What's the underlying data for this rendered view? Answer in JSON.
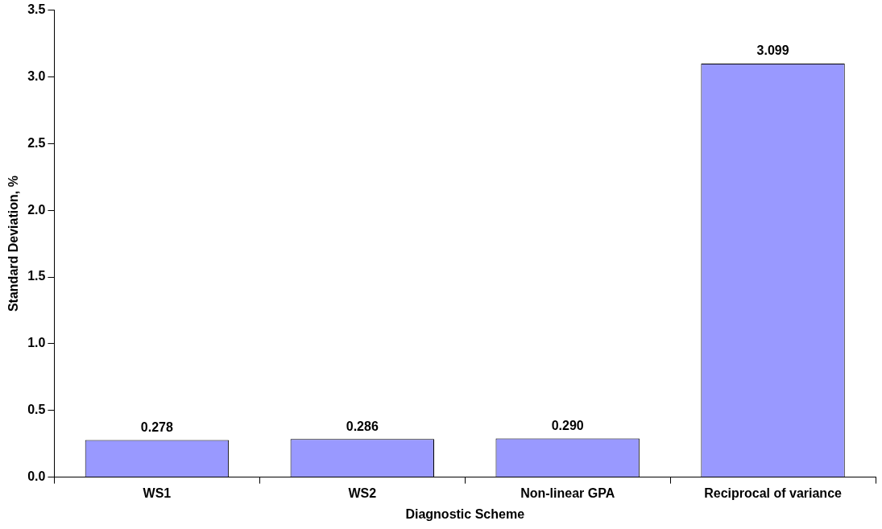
{
  "chart_data": {
    "type": "bar",
    "xlabel": "Diagnostic Scheme",
    "ylabel": "Standard Deviation, %",
    "categories": [
      "WS1",
      "WS2",
      "Non-linear GPA",
      "Reciprocal of variance"
    ],
    "values": [
      0.278,
      0.286,
      0.29,
      3.099
    ],
    "value_labels": [
      "0.278",
      "0.286",
      "0.290",
      "3.099"
    ],
    "color": "#9999ff",
    "ylim": [
      0,
      3.5
    ],
    "yticks": [
      {
        "value": 0,
        "label": "0.0"
      },
      {
        "value": 0.5,
        "label": "0.5"
      },
      {
        "value": 1,
        "label": "1.0"
      },
      {
        "value": 1.5,
        "label": "1.5"
      },
      {
        "value": 2,
        "label": "2.0"
      },
      {
        "value": 2.5,
        "label": "2.5"
      },
      {
        "value": 3,
        "label": "3.0"
      },
      {
        "value": 3.5,
        "label": "3.5"
      }
    ],
    "grid": false,
    "legend": false
  }
}
